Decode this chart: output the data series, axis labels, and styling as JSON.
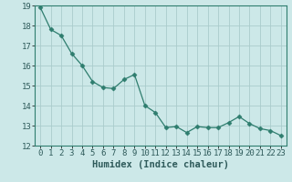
{
  "x": [
    0,
    1,
    2,
    3,
    4,
    5,
    6,
    7,
    8,
    9,
    10,
    11,
    12,
    13,
    14,
    15,
    16,
    17,
    18,
    19,
    20,
    21,
    22,
    23
  ],
  "y": [
    18.9,
    17.8,
    17.5,
    16.6,
    16.0,
    15.2,
    14.9,
    14.85,
    15.3,
    15.55,
    14.0,
    13.65,
    12.9,
    12.95,
    12.65,
    12.95,
    12.9,
    12.9,
    13.15,
    13.45,
    13.1,
    12.85,
    12.75,
    12.5
  ],
  "line_color": "#2e7d6e",
  "marker": "D",
  "marker_size": 2.5,
  "bg_color": "#cce8e8",
  "grid_color": "#aacccc",
  "xlabel": "Humidex (Indice chaleur)",
  "ylim": [
    12,
    19
  ],
  "xlim": [
    -0.5,
    23.5
  ],
  "yticks": [
    12,
    13,
    14,
    15,
    16,
    17,
    18,
    19
  ],
  "xticks": [
    0,
    1,
    2,
    3,
    4,
    5,
    6,
    7,
    8,
    9,
    10,
    11,
    12,
    13,
    14,
    15,
    16,
    17,
    18,
    19,
    20,
    21,
    22,
    23
  ],
  "xlabel_fontsize": 7.5,
  "tick_fontsize": 6.5
}
